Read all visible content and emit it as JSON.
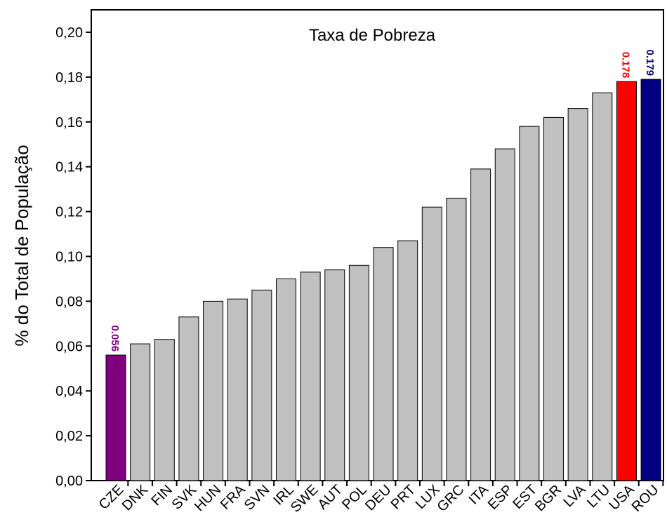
{
  "chart_data": {
    "type": "bar",
    "title": "Taxa de Pobreza",
    "ylabel": "% do Total de População",
    "categories": [
      "CZE",
      "DNK",
      "FIN",
      "SVK",
      "HUN",
      "FRA",
      "SVN",
      "IRL",
      "SWE",
      "AUT",
      "POL",
      "DEU",
      "PRT",
      "LUX",
      "GRC",
      "ITA",
      "ESP",
      "EST",
      "BGR",
      "LVA",
      "LTU",
      "USA",
      "ROU"
    ],
    "values": [
      0.056,
      0.061,
      0.063,
      0.073,
      0.08,
      0.081,
      0.085,
      0.09,
      0.093,
      0.094,
      0.096,
      0.104,
      0.107,
      0.122,
      0.126,
      0.139,
      0.148,
      0.158,
      0.162,
      0.166,
      0.173,
      0.178,
      0.179
    ],
    "value_labels": [
      "0.056",
      null,
      null,
      null,
      null,
      null,
      null,
      null,
      null,
      null,
      null,
      null,
      null,
      null,
      null,
      null,
      null,
      null,
      null,
      null,
      null,
      "0.178",
      "0.179"
    ],
    "colors": [
      "#800080",
      "#c0c0c0",
      "#c0c0c0",
      "#c0c0c0",
      "#c0c0c0",
      "#c0c0c0",
      "#c0c0c0",
      "#c0c0c0",
      "#c0c0c0",
      "#c0c0c0",
      "#c0c0c0",
      "#c0c0c0",
      "#c0c0c0",
      "#c0c0c0",
      "#c0c0c0",
      "#c0c0c0",
      "#c0c0c0",
      "#c0c0c0",
      "#c0c0c0",
      "#c0c0c0",
      "#c0c0c0",
      "#ff0000",
      "#000080"
    ],
    "ylim": [
      0,
      0.21
    ],
    "yticks": [
      {
        "value": 0,
        "label": "0,00"
      },
      {
        "value": 0.02,
        "label": "0,02"
      },
      {
        "value": 0.04,
        "label": "0,04"
      },
      {
        "value": 0.06,
        "label": "0,06"
      },
      {
        "value": 0.08,
        "label": "0,08"
      },
      {
        "value": 0.1,
        "label": "0,10"
      },
      {
        "value": 0.12,
        "label": "0,12"
      },
      {
        "value": 0.14,
        "label": "0,14"
      },
      {
        "value": 0.16,
        "label": "0,16"
      },
      {
        "value": 0.18,
        "label": "0,18"
      },
      {
        "value": 0.2,
        "label": "0,20"
      }
    ]
  }
}
